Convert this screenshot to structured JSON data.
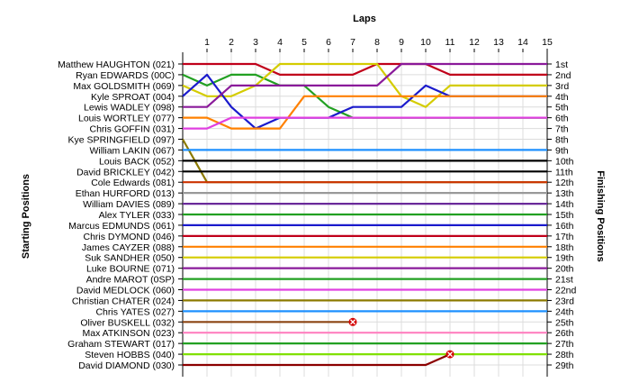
{
  "chart_data": {
    "type": "line",
    "title": "Laps",
    "ylabel_left": "Starting Positions",
    "ylabel_right": "Finishing Positions",
    "laps": [
      1,
      2,
      3,
      4,
      5,
      6,
      7,
      8,
      9,
      10,
      11,
      12,
      13,
      14,
      15
    ],
    "finish_labels": [
      "1st",
      "2nd",
      "3rd",
      "4th",
      "5th",
      "6th",
      "7th",
      "8th",
      "9th",
      "10th",
      "11th",
      "12th",
      "13th",
      "14th",
      "15th",
      "16th",
      "17th",
      "18th",
      "19th",
      "20th",
      "21st",
      "22nd",
      "23rd",
      "24th",
      "25th",
      "26th",
      "27th",
      "28th",
      "29th"
    ],
    "grid": true,
    "series": [
      {
        "name": "Matthew HAUGHTON (021)",
        "color": "#c0001a",
        "positions": [
          1,
          1,
          1,
          1,
          2,
          2,
          2,
          2,
          1,
          1,
          1,
          2,
          2,
          2,
          2,
          2
        ]
      },
      {
        "name": "Ryan EDWARDS (00C)",
        "color": "#22a022",
        "positions": [
          2,
          3,
          2,
          2,
          3,
          3,
          5,
          6,
          6,
          6,
          6,
          6,
          6,
          6,
          6,
          6
        ]
      },
      {
        "name": "Max GOLDSMITH (069)",
        "color": "#d4cc00",
        "positions": [
          3,
          4,
          4,
          3,
          1,
          1,
          1,
          1,
          1,
          4,
          5,
          3,
          3,
          3,
          3,
          3
        ]
      },
      {
        "name": "Kyle SPROAT (004)",
        "color": "#1a1acc",
        "positions": [
          4,
          2,
          5,
          7,
          6,
          6,
          6,
          5,
          5,
          5,
          3,
          4,
          4,
          4,
          4,
          4
        ]
      },
      {
        "name": "Lewis WADLEY (098)",
        "color": "#8a1a9a",
        "positions": [
          5,
          5,
          3,
          3,
          3,
          3,
          3,
          3,
          3,
          1,
          1,
          1,
          1,
          1,
          1,
          1
        ]
      },
      {
        "name": "Louis WORTLEY (077)",
        "color": "#ff8000",
        "positions": [
          6,
          6,
          7,
          7,
          7,
          4,
          4,
          4,
          4,
          4,
          4,
          4,
          4,
          4,
          4,
          4
        ]
      },
      {
        "name": "Chris GOFFIN (031)",
        "color": "#e040e0",
        "positions": [
          7,
          7,
          6,
          6,
          6,
          6,
          6,
          6,
          6,
          6,
          6,
          6,
          6,
          6,
          6,
          6
        ]
      },
      {
        "name": "Kye SPRINGFIELD (097)",
        "color": "#8c7a00",
        "positions": [
          8,
          12,
          12,
          12,
          12,
          12,
          12,
          12,
          12,
          12,
          12,
          12,
          12,
          12,
          12,
          12
        ]
      },
      {
        "name": "William LAKIN (067)",
        "color": "#1e90ff",
        "positions": [
          9,
          9,
          9,
          9,
          9,
          9,
          9,
          9,
          9,
          9,
          9,
          9,
          9,
          9,
          9,
          9
        ]
      },
      {
        "name": "Louis BACK (052)",
        "color": "#000000",
        "positions": [
          10,
          10,
          10,
          10,
          10,
          10,
          10,
          10,
          10,
          10,
          10,
          10,
          10,
          10,
          10,
          10
        ]
      },
      {
        "name": "David BRICKLEY (042)",
        "color": "#000000",
        "positions": [
          11,
          11,
          11,
          11,
          11,
          11,
          11,
          11,
          11,
          11,
          11,
          11,
          11,
          11,
          11,
          11
        ]
      },
      {
        "name": "Cole Edwards (081)",
        "color": "#cc3300",
        "positions": [
          12,
          12,
          12,
          12,
          12,
          12,
          12,
          12,
          12,
          12,
          12,
          12,
          12,
          12,
          12,
          12
        ]
      },
      {
        "name": "Ethan HURFORD (013)",
        "color": "#999999",
        "positions": [
          13,
          13,
          13,
          13,
          13,
          13,
          13,
          13,
          13,
          13,
          13,
          13,
          13,
          13,
          13,
          13
        ]
      },
      {
        "name": "William DAVIES (089)",
        "color": "#6a2a9a",
        "positions": [
          14,
          14,
          14,
          14,
          14,
          14,
          14,
          14,
          14,
          14,
          14,
          14,
          14,
          14,
          14,
          14
        ]
      },
      {
        "name": "Alex TYLER (033)",
        "color": "#22a022",
        "positions": [
          15,
          15,
          15,
          15,
          15,
          15,
          15,
          15,
          15,
          15,
          15,
          15,
          15,
          15,
          15,
          15
        ]
      },
      {
        "name": "Marcus EDMUNDS (061)",
        "color": "#1a1acc",
        "positions": [
          16,
          16,
          16,
          16,
          16,
          16,
          16,
          16,
          16,
          16,
          16,
          16,
          16,
          16,
          16,
          16
        ]
      },
      {
        "name": "Chris DYMOND (046)",
        "color": "#c0001a",
        "positions": [
          17,
          17,
          17,
          17,
          17,
          17,
          17,
          17,
          17,
          17,
          17,
          17,
          17,
          17,
          17,
          17
        ]
      },
      {
        "name": "James CAYZER (088)",
        "color": "#ff8000",
        "positions": [
          18,
          18,
          18,
          18,
          18,
          18,
          18,
          18,
          18,
          18,
          18,
          18,
          18,
          18,
          18,
          18
        ]
      },
      {
        "name": "Suk SANDHER (050)",
        "color": "#d4cc00",
        "positions": [
          19,
          19,
          19,
          19,
          19,
          19,
          19,
          19,
          19,
          19,
          19,
          19,
          19,
          19,
          19,
          19
        ]
      },
      {
        "name": "Luke BOURNE (071)",
        "color": "#8a1a9a",
        "positions": [
          20,
          20,
          20,
          20,
          20,
          20,
          20,
          20,
          20,
          20,
          20,
          20,
          20,
          20,
          20,
          20
        ]
      },
      {
        "name": "Andre MAROT (0SP)",
        "color": "#22a022",
        "positions": [
          21,
          21,
          21,
          21,
          21,
          21,
          21,
          21,
          21,
          21,
          21,
          21,
          21,
          21,
          21,
          21
        ]
      },
      {
        "name": "David MEDLOCK (060)",
        "color": "#e040e0",
        "positions": [
          22,
          22,
          22,
          22,
          22,
          22,
          22,
          22,
          22,
          22,
          22,
          22,
          22,
          22,
          22,
          22
        ]
      },
      {
        "name": "Christian CHATER (024)",
        "color": "#8c7a00",
        "positions": [
          23,
          23,
          23,
          23,
          23,
          23,
          23,
          23,
          23,
          23,
          23,
          23,
          23,
          23,
          23,
          23
        ]
      },
      {
        "name": "Chris YATES (027)",
        "color": "#1e90ff",
        "positions": [
          24,
          24,
          24,
          24,
          24,
          24,
          24,
          24,
          24,
          24,
          24,
          24,
          24,
          24,
          24,
          24
        ]
      },
      {
        "name": "Oliver BUSKELL (032)",
        "color": "#8b4513",
        "positions": [
          25,
          25,
          25,
          25,
          25,
          25,
          25,
          25,
          null,
          null,
          null,
          null,
          null,
          null,
          null,
          null
        ]
      },
      {
        "name": "Max ATKINSON (023)",
        "color": "#ff80c0",
        "positions": [
          26,
          26,
          26,
          26,
          26,
          26,
          26,
          26,
          26,
          26,
          26,
          26,
          26,
          26,
          26,
          26
        ]
      },
      {
        "name": "Graham STEWART (017)",
        "color": "#22a022",
        "positions": [
          27,
          27,
          27,
          27,
          27,
          27,
          27,
          27,
          27,
          27,
          27,
          27,
          27,
          27,
          27,
          27
        ]
      },
      {
        "name": "Steven HOBBS (040)",
        "color": "#80e000",
        "positions": [
          28,
          28,
          28,
          28,
          28,
          28,
          28,
          28,
          28,
          28,
          28,
          28,
          28,
          28,
          28,
          28
        ]
      },
      {
        "name": "David DIAMOND (030)",
        "color": "#8b0000",
        "positions": [
          29,
          29,
          29,
          29,
          29,
          29,
          29,
          29,
          29,
          29,
          29,
          28,
          null,
          null,
          null,
          null
        ]
      }
    ],
    "retirements": [
      {
        "name": "Oliver BUSKELL (032)",
        "lap": 7,
        "position": 25
      },
      {
        "name": "David DIAMOND (030)",
        "lap": 11,
        "position": 28
      }
    ]
  }
}
